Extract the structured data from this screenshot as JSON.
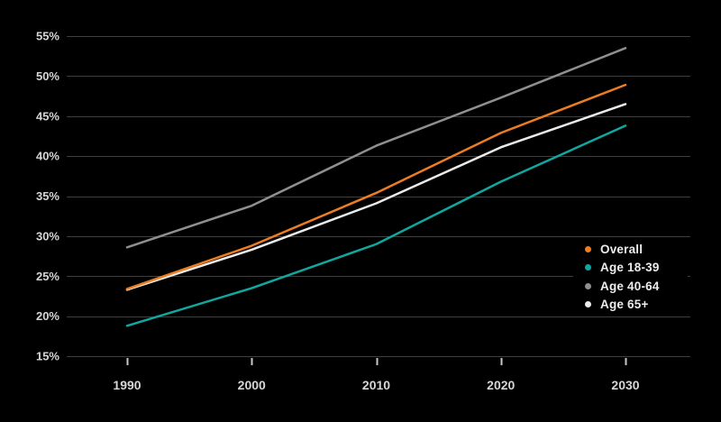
{
  "chart_data": {
    "type": "line",
    "title": "",
    "xlabel": "",
    "ylabel": "",
    "x": [
      1990,
      2000,
      2010,
      2020,
      2030
    ],
    "x_tick_labels": [
      "1990",
      "2000",
      "2010",
      "2020",
      "2030"
    ],
    "y_ticks": [
      55,
      50,
      45,
      40,
      35,
      30,
      25,
      20,
      15
    ],
    "y_tick_labels": [
      "55%",
      "50%",
      "45%",
      "40%",
      "35%",
      "30%",
      "25%",
      "20%",
      "15%"
    ],
    "ylim": [
      15,
      55
    ],
    "xlim": [
      1990,
      2030
    ],
    "grid": "horizontal",
    "legend_position": "middle-right",
    "series": [
      {
        "name": "Overall",
        "color": "#ED7D23",
        "values": [
          23.4,
          28.8,
          35.4,
          42.9,
          48.9
        ]
      },
      {
        "name": "Age 18-39",
        "color": "#10A79E",
        "values": [
          18.8,
          23.5,
          29.0,
          36.8,
          43.8
        ]
      },
      {
        "name": "Age 40-64",
        "color": "#8F8F8F",
        "values": [
          28.6,
          33.8,
          41.3,
          47.3,
          53.5
        ]
      },
      {
        "name": "Age 65+",
        "color": "#EBEBEB",
        "values": [
          23.3,
          28.3,
          34.1,
          41.1,
          46.5
        ]
      }
    ]
  },
  "colors": {
    "background": "#000000",
    "gridline": "#3F3F3F",
    "axis_text": "#D6D6D6",
    "tick_mark": "#C9C9C9",
    "legend_text": "#ECECEC",
    "legend_background": "#000000"
  }
}
